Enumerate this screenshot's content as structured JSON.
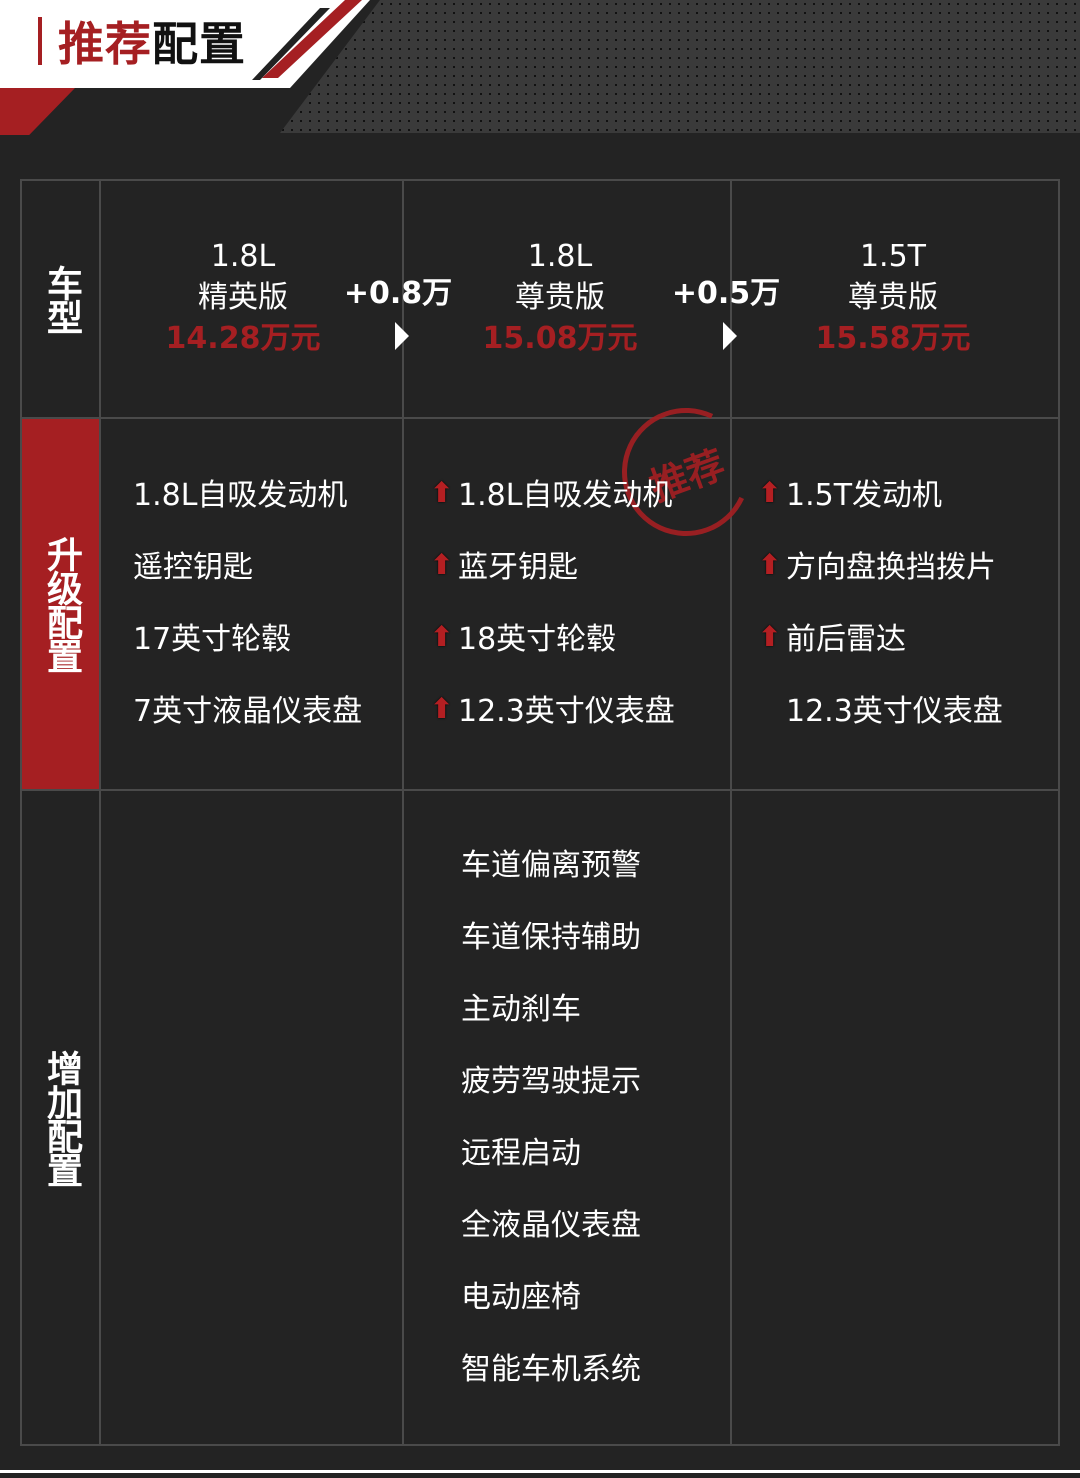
{
  "header": {
    "title_red": "推荐",
    "title_black": "配置"
  },
  "rows": {
    "model": "车型",
    "upgrade": "升级配置",
    "added": "增加配置"
  },
  "models": [
    {
      "engine": "1.8L",
      "trim": "精英版",
      "price": "14.28万元"
    },
    {
      "engine": "1.8L",
      "trim": "尊贵版",
      "price": "15.08万元"
    },
    {
      "engine": "1.5T",
      "trim": "尊贵版",
      "price": "15.58万元"
    }
  ],
  "deltas": [
    "+0.8万",
    "+0.5万"
  ],
  "stamp": "推荐",
  "upgrades": [
    {
      "items": [
        {
          "text": "1.8L自吸发动机",
          "up": false
        },
        {
          "text": "遥控钥匙",
          "up": false
        },
        {
          "text": "17英寸轮毂",
          "up": false
        },
        {
          "text": "7英寸液晶仪表盘",
          "up": false
        }
      ]
    },
    {
      "items": [
        {
          "text": "1.8L自吸发动机",
          "up": true
        },
        {
          "text": "蓝牙钥匙",
          "up": true
        },
        {
          "text": "18英寸轮毂",
          "up": true
        },
        {
          "text": "12.3英寸仪表盘",
          "up": true
        }
      ]
    },
    {
      "items": [
        {
          "text": "1.5T发动机",
          "up": true
        },
        {
          "text": "方向盘换挡拨片",
          "up": true
        },
        {
          "text": "前后雷达",
          "up": true
        },
        {
          "text": "12.3英寸仪表盘",
          "up": false
        }
      ]
    }
  ],
  "added": [
    "车道偏离预警",
    "车道保持辅助",
    "主动刹车",
    "疲劳驾驶提示",
    "远程启动",
    "全液晶仪表盘",
    "电动座椅",
    "智能车机系统"
  ],
  "colors": {
    "accent": "#a51f22",
    "background": "#232323"
  }
}
